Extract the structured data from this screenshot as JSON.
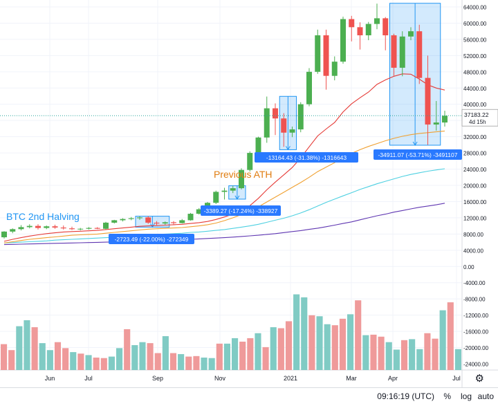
{
  "chart_data": {
    "type": "candlestick",
    "y_axis": {
      "min": -24000,
      "max": 64000,
      "step": 4000
    },
    "x_ticks": [
      "Jun",
      "Jul",
      "Sep",
      "Nov",
      "2021",
      "Mar",
      "Apr",
      "Jul"
    ],
    "price_label": {
      "value": "37183.22",
      "countdown": "4d 15h",
      "price": 37183.22
    },
    "annotations": {
      "halving": "BTC 2nd Halving",
      "prev_ath": "Previous ATH",
      "m1": "-2723.49 (-22.00%) -272349",
      "m2": "-3389.27 (-17.24%) -338927",
      "m3": "-13164.43 (-31.38%) -1316643",
      "m4": "-34911.07 (-53.71%) -3491107"
    },
    "candles": [
      {
        "o": 7200,
        "h": 8700,
        "l": 6900,
        "c": 8600
      },
      {
        "o": 8600,
        "h": 9400,
        "l": 8200,
        "c": 9200
      },
      {
        "o": 9200,
        "h": 10200,
        "l": 8900,
        "c": 9700
      },
      {
        "o": 9700,
        "h": 10400,
        "l": 9400,
        "c": 10000
      },
      {
        "o": 10000,
        "h": 10400,
        "l": 9100,
        "c": 9500
      },
      {
        "o": 9500,
        "h": 10100,
        "l": 9200,
        "c": 9900
      },
      {
        "o": 9900,
        "h": 10300,
        "l": 9300,
        "c": 9600
      },
      {
        "o": 9600,
        "h": 10100,
        "l": 9100,
        "c": 9400
      },
      {
        "o": 9400,
        "h": 9800,
        "l": 9000,
        "c": 9200
      },
      {
        "o": 9200,
        "h": 9500,
        "l": 8900,
        "c": 9300
      },
      {
        "o": 9300,
        "h": 9700,
        "l": 9100,
        "c": 9500
      },
      {
        "o": 9500,
        "h": 9700,
        "l": 9200,
        "c": 9300
      },
      {
        "o": 9300,
        "h": 11000,
        "l": 9100,
        "c": 10800
      },
      {
        "o": 10800,
        "h": 11500,
        "l": 10600,
        "c": 11400
      },
      {
        "o": 11400,
        "h": 11900,
        "l": 11100,
        "c": 11700
      },
      {
        "o": 11700,
        "h": 12200,
        "l": 11400,
        "c": 11900
      },
      {
        "o": 11900,
        "h": 12400,
        "l": 11500,
        "c": 12100
      },
      {
        "o": 12100,
        "h": 12400,
        "l": 10500,
        "c": 10800
      },
      {
        "o": 10800,
        "h": 11200,
        "l": 10000,
        "c": 10600
      },
      {
        "o": 10600,
        "h": 11100,
        "l": 10300,
        "c": 10900
      },
      {
        "o": 10900,
        "h": 11200,
        "l": 10400,
        "c": 10700
      },
      {
        "o": 10700,
        "h": 11700,
        "l": 10600,
        "c": 11400
      },
      {
        "o": 11400,
        "h": 13200,
        "l": 11300,
        "c": 13000
      },
      {
        "o": 13000,
        "h": 14400,
        "l": 12800,
        "c": 14100
      },
      {
        "o": 14100,
        "h": 15900,
        "l": 13900,
        "c": 15700
      },
      {
        "o": 15700,
        "h": 18700,
        "l": 15400,
        "c": 18400
      },
      {
        "o": 18400,
        "h": 19400,
        "l": 16500,
        "c": 18700
      },
      {
        "o": 18700,
        "h": 19900,
        "l": 18100,
        "c": 19300
      },
      {
        "o": 19300,
        "h": 24200,
        "l": 19000,
        "c": 23800
      },
      {
        "o": 23800,
        "h": 28400,
        "l": 23400,
        "c": 28000
      },
      {
        "o": 28000,
        "h": 32000,
        "l": 27500,
        "c": 31800
      },
      {
        "o": 31800,
        "h": 41900,
        "l": 30500,
        "c": 39000
      },
      {
        "o": 39000,
        "h": 40200,
        "l": 32400,
        "c": 36500
      },
      {
        "o": 36500,
        "h": 37800,
        "l": 29500,
        "c": 33000
      },
      {
        "o": 33000,
        "h": 34500,
        "l": 31900,
        "c": 33800
      },
      {
        "o": 33800,
        "h": 40500,
        "l": 33100,
        "c": 40000
      },
      {
        "o": 40000,
        "h": 48900,
        "l": 39500,
        "c": 48000
      },
      {
        "o": 48000,
        "h": 58400,
        "l": 47500,
        "c": 57000
      },
      {
        "o": 57000,
        "h": 58400,
        "l": 43600,
        "c": 47000
      },
      {
        "o": 47000,
        "h": 51800,
        "l": 45900,
        "c": 50500
      },
      {
        "o": 50500,
        "h": 61600,
        "l": 50000,
        "c": 61000
      },
      {
        "o": 61000,
        "h": 61800,
        "l": 55500,
        "c": 59000
      },
      {
        "o": 59000,
        "h": 60200,
        "l": 53500,
        "c": 57000
      },
      {
        "o": 57000,
        "h": 60300,
        "l": 55800,
        "c": 59800
      },
      {
        "o": 59800,
        "h": 64800,
        "l": 58500,
        "c": 61200
      },
      {
        "o": 61200,
        "h": 61500,
        "l": 53300,
        "c": 57000
      },
      {
        "o": 57000,
        "h": 57400,
        "l": 47000,
        "c": 49000
      },
      {
        "o": 49000,
        "h": 58000,
        "l": 46900,
        "c": 56700
      },
      {
        "o": 56700,
        "h": 59000,
        "l": 55800,
        "c": 58000
      },
      {
        "o": 58000,
        "h": 59600,
        "l": 45000,
        "c": 46500
      },
      {
        "o": 46500,
        "h": 52000,
        "l": 30000,
        "c": 35000
      },
      {
        "o": 35000,
        "h": 40800,
        "l": 33500,
        "c": 35500
      },
      {
        "o": 35500,
        "h": 38400,
        "l": 34500,
        "c": 37183
      }
    ],
    "ma_red": [
      6200,
      6700,
      7100,
      7500,
      7800,
      8100,
      8300,
      8500,
      8600,
      8700,
      8800,
      8900,
      9100,
      9300,
      9500,
      9700,
      9900,
      10000,
      10100,
      10200,
      10300,
      10400,
      10600,
      10800,
      11100,
      11600,
      12200,
      12900,
      13800,
      15000,
      16800,
      18900,
      20800,
      22600,
      24400,
      26800,
      29500,
      32200,
      33900,
      35500,
      38100,
      40100,
      41600,
      43000,
      44900,
      46000,
      46900,
      47500,
      47400,
      46200,
      44800,
      44000,
      43500
    ],
    "ma_orange": [
      5800,
      6100,
      6400,
      6700,
      6900,
      7100,
      7300,
      7500,
      7700,
      7800,
      7900,
      8000,
      8200,
      8400,
      8600,
      8800,
      9000,
      9200,
      9300,
      9400,
      9500,
      9600,
      9800,
      10000,
      10300,
      10700,
      11300,
      12000,
      12800,
      13700,
      14700,
      15900,
      17100,
      18300,
      19500,
      20700,
      22000,
      23400,
      24500,
      25600,
      26800,
      27900,
      28800,
      29600,
      30300,
      31000,
      31600,
      32100,
      32500,
      32800,
      33000,
      33200,
      33400
    ],
    "ma_cyan": [
      5800,
      5900,
      6000,
      6100,
      6200,
      6300,
      6500,
      6600,
      6700,
      6800,
      6900,
      7000,
      7100,
      7200,
      7400,
      7500,
      7600,
      7800,
      7900,
      8000,
      8100,
      8200,
      8400,
      8500,
      8700,
      8900,
      9100,
      9400,
      9700,
      10000,
      10400,
      10900,
      11400,
      11900,
      12500,
      13200,
      14000,
      14900,
      15800,
      16600,
      17400,
      18200,
      19000,
      19700,
      20400,
      21000,
      21600,
      22200,
      22700,
      23100,
      23500,
      23800,
      24100
    ],
    "ma_purple": [
      5400,
      5450,
      5500,
      5550,
      5600,
      5650,
      5700,
      5750,
      5800,
      5850,
      5900,
      5950,
      6000,
      6050,
      6100,
      6150,
      6200,
      6300,
      6400,
      6500,
      6550,
      6600,
      6700,
      6800,
      6900,
      7000,
      7100,
      7250,
      7400,
      7550,
      7700,
      7900,
      8100,
      8350,
      8600,
      8850,
      9150,
      9450,
      9800,
      10200,
      10600,
      11000,
      11500,
      12000,
      12500,
      12900,
      13400,
      13800,
      14200,
      14600,
      14900,
      15200,
      15600
    ],
    "volume": [
      0.52,
      0.4,
      0.88,
      1.0,
      0.86,
      0.54,
      0.4,
      0.56,
      0.44,
      0.36,
      0.33,
      0.3,
      0.25,
      0.24,
      0.27,
      0.44,
      0.82,
      0.5,
      0.56,
      0.54,
      0.34,
      0.68,
      0.34,
      0.32,
      0.27,
      0.28,
      0.25,
      0.24,
      0.53,
      0.53,
      0.64,
      0.57,
      0.64,
      0.74,
      0.46,
      0.86,
      0.84,
      0.98,
      1.52,
      1.46,
      1.1,
      1.08,
      0.92,
      0.9,
      1.03,
      1.12,
      1.4,
      0.7,
      0.71,
      0.67,
      0.56,
      0.41,
      0.6,
      0.62,
      0.42,
      0.74,
      0.63,
      1.2,
      1.36,
      0.42
    ]
  },
  "bottom_bar": {
    "time": "09:16:19 (UTC)",
    "pct": "%",
    "log": "log",
    "auto": "auto"
  }
}
